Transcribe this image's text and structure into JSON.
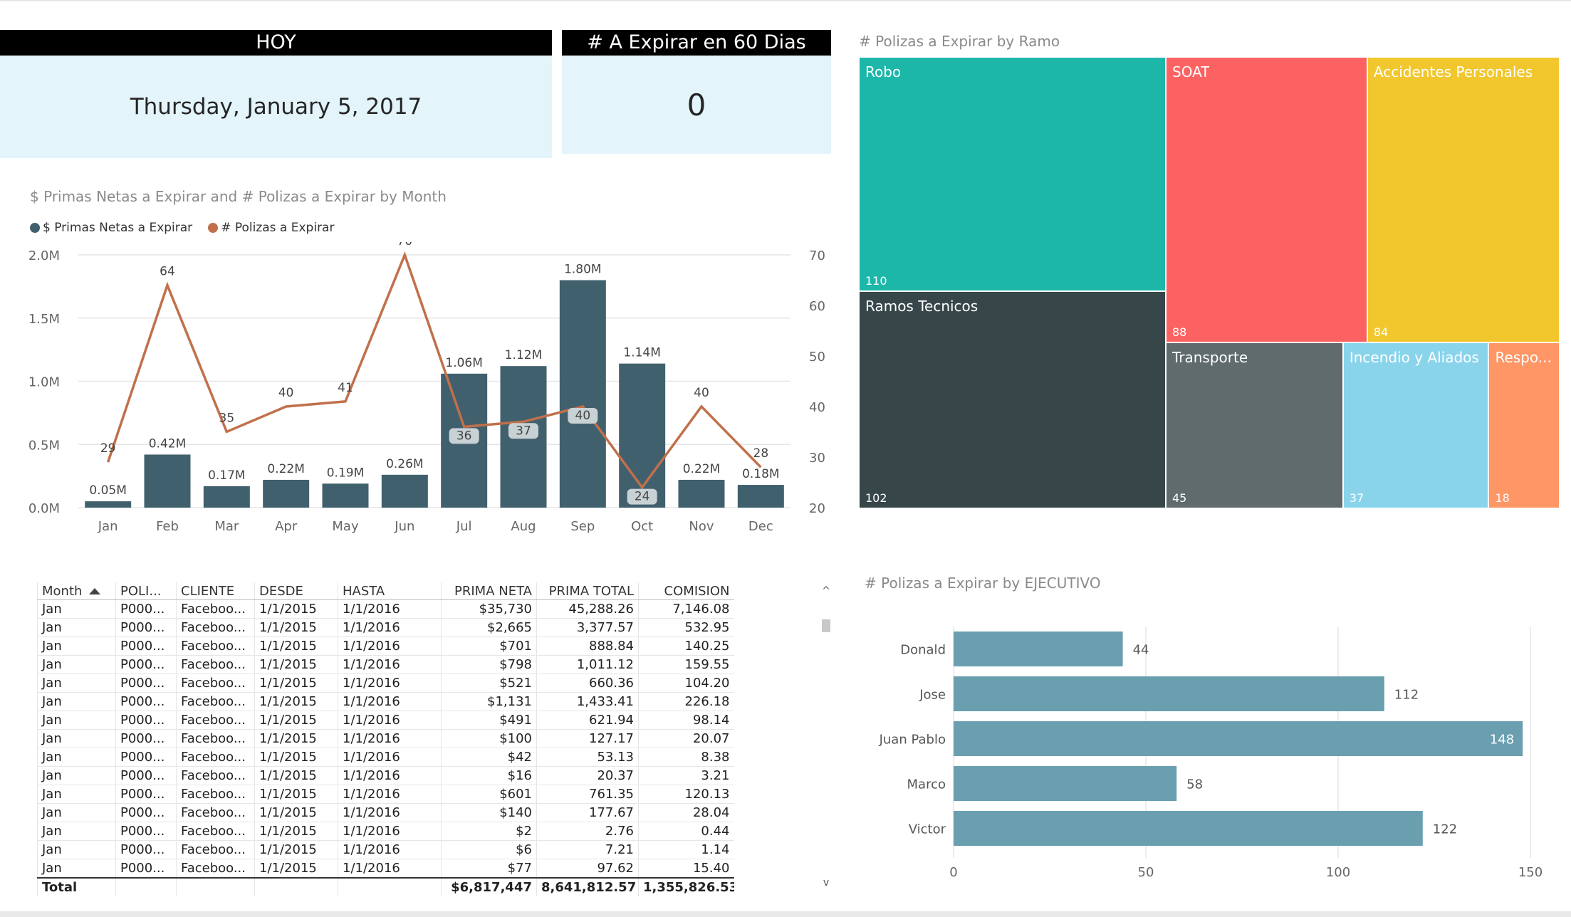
{
  "colors": {
    "bar": "#41606d",
    "line": "#c0704b",
    "exec_bar": "#6a9fb0",
    "card_bg": "#e3f4fb",
    "treemap": [
      "#1db7aa",
      "#fd6262",
      "#f2c72e",
      "#374649",
      "#5f6b6d",
      "#8ad4eb",
      "#fe9666"
    ]
  },
  "card_hoy": {
    "header": "HOY",
    "value": "Thursday, January 5, 2017"
  },
  "card_expirar": {
    "header": "# A Expirar en  60 Dias",
    "value": "0"
  },
  "combo": {
    "title": "$ Primas Netas a Expirar and # Polizas a Expirar by Month",
    "legend": [
      "$ Primas Netas a Expirar",
      "# Polizas a Expirar"
    ]
  },
  "treemap": {
    "title": "# Polizas a Expirar by Ramo",
    "items": [
      {
        "name": "Robo",
        "value": 110
      },
      {
        "name": "SOAT",
        "value": 88
      },
      {
        "name": "Accidentes Personales",
        "value": 84
      },
      {
        "name": "Ramos Tecnicos",
        "value": 102
      },
      {
        "name": "Transporte",
        "value": 45
      },
      {
        "name": "Incendio y Aliados",
        "value": 37
      },
      {
        "name": "Respo...",
        "value": 18
      }
    ]
  },
  "executive": {
    "title": "# Polizas a Expirar by EJECUTIVO"
  },
  "table": {
    "sort_icon": "sort-up-triangle-icon",
    "columns": [
      "Month",
      "POLI...",
      "CLIENTE",
      "DESDE",
      "HASTA",
      "PRIMA NETA",
      "PRIMA TOTAL",
      "COMISION"
    ],
    "rows": [
      [
        "Jan",
        "P000...",
        "Faceboo...",
        "1/1/2015",
        "1/1/2016",
        "$35,730",
        "45,288.26",
        "7,146.08"
      ],
      [
        "Jan",
        "P000...",
        "Faceboo...",
        "1/1/2015",
        "1/1/2016",
        "$2,665",
        "3,377.57",
        "532.95"
      ],
      [
        "Jan",
        "P000...",
        "Faceboo...",
        "1/1/2015",
        "1/1/2016",
        "$701",
        "888.84",
        "140.25"
      ],
      [
        "Jan",
        "P000...",
        "Faceboo...",
        "1/1/2015",
        "1/1/2016",
        "$798",
        "1,011.12",
        "159.55"
      ],
      [
        "Jan",
        "P000...",
        "Faceboo...",
        "1/1/2015",
        "1/1/2016",
        "$521",
        "660.36",
        "104.20"
      ],
      [
        "Jan",
        "P000...",
        "Faceboo...",
        "1/1/2015",
        "1/1/2016",
        "$1,131",
        "1,433.41",
        "226.18"
      ],
      [
        "Jan",
        "P000...",
        "Faceboo...",
        "1/1/2015",
        "1/1/2016",
        "$491",
        "621.94",
        "98.14"
      ],
      [
        "Jan",
        "P000...",
        "Faceboo...",
        "1/1/2015",
        "1/1/2016",
        "$100",
        "127.17",
        "20.07"
      ],
      [
        "Jan",
        "P000...",
        "Faceboo...",
        "1/1/2015",
        "1/1/2016",
        "$42",
        "53.13",
        "8.38"
      ],
      [
        "Jan",
        "P000...",
        "Faceboo...",
        "1/1/2015",
        "1/1/2016",
        "$16",
        "20.37",
        "3.21"
      ],
      [
        "Jan",
        "P000...",
        "Faceboo...",
        "1/1/2015",
        "1/1/2016",
        "$601",
        "761.35",
        "120.13"
      ],
      [
        "Jan",
        "P000...",
        "Faceboo...",
        "1/1/2015",
        "1/1/2016",
        "$140",
        "177.67",
        "28.04"
      ],
      [
        "Jan",
        "P000...",
        "Faceboo...",
        "1/1/2015",
        "1/1/2016",
        "$2",
        "2.76",
        "0.44"
      ],
      [
        "Jan",
        "P000...",
        "Faceboo...",
        "1/1/2015",
        "1/1/2016",
        "$6",
        "7.21",
        "1.14"
      ],
      [
        "Jan",
        "P000...",
        "Faceboo...",
        "1/1/2015",
        "1/1/2016",
        "$77",
        "97.62",
        "15.40"
      ]
    ],
    "total": [
      "Total",
      "",
      "",
      "",
      "",
      "$6,817,447",
      "8,641,812.57",
      "1,355,826.53"
    ],
    "scroll_up": "^",
    "scroll_down": "v"
  },
  "chart_data": [
    {
      "type": "bar+line",
      "title": "$ Primas Netas a Expirar and # Polizas a Expirar by Month",
      "categories": [
        "Jan",
        "Feb",
        "Mar",
        "Apr",
        "May",
        "Jun",
        "Jul",
        "Aug",
        "Sep",
        "Oct",
        "Nov",
        "Dec"
      ],
      "series": [
        {
          "name": "$ Primas Netas a Expirar",
          "kind": "bar",
          "axis": "left",
          "values": [
            0.05,
            0.42,
            0.17,
            0.22,
            0.19,
            0.26,
            1.06,
            1.12,
            1.8,
            1.14,
            0.22,
            0.18
          ],
          "labels": [
            "0.05M",
            "0.42M",
            "0.17M",
            "0.22M",
            "0.19M",
            "0.26M",
            "1.06M",
            "1.12M",
            "1.80M",
            "1.14M",
            "0.22M",
            "0.18M"
          ]
        },
        {
          "name": "# Polizas a Expirar",
          "kind": "line",
          "axis": "right",
          "values": [
            29,
            64,
            35,
            40,
            41,
            70,
            36,
            37,
            40,
            24,
            40,
            28
          ]
        }
      ],
      "y_left": {
        "min": 0,
        "max": 2.0,
        "ticks": [
          0,
          0.5,
          1.0,
          1.5,
          2.0
        ],
        "tick_labels": [
          "0.0M",
          "0.5M",
          "1.0M",
          "1.5M",
          "2.0M"
        ]
      },
      "y_right": {
        "min": 20,
        "max": 70,
        "ticks": [
          20,
          30,
          40,
          50,
          60,
          70
        ],
        "tick_labels": [
          "20",
          "30",
          "40",
          "50",
          "60",
          "70"
        ]
      },
      "legend": "top-left"
    },
    {
      "type": "treemap",
      "title": "# Polizas a Expirar by Ramo",
      "categories": [
        "Robo",
        "SOAT",
        "Accidentes Personales",
        "Ramos Tecnicos",
        "Transporte",
        "Incendio y Aliados",
        "Respo..."
      ],
      "values": [
        110,
        88,
        84,
        102,
        45,
        37,
        18
      ]
    },
    {
      "type": "bar",
      "orientation": "horizontal",
      "title": "# Polizas a Expirar by EJECUTIVO",
      "categories": [
        "Donald",
        "Jose",
        "Juan Pablo",
        "Marco",
        "Victor"
      ],
      "values": [
        44,
        112,
        148,
        58,
        122
      ],
      "xlim": [
        0,
        150
      ],
      "x_ticks": [
        0,
        50,
        100,
        150
      ],
      "x_tick_labels": [
        "0",
        "50",
        "100",
        "150"
      ]
    }
  ]
}
